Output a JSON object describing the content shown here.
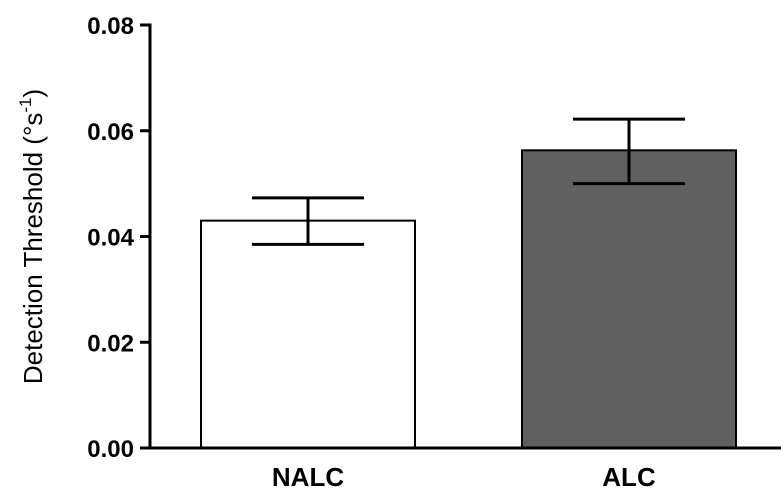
{
  "chart_data": {
    "type": "bar",
    "categories": [
      "NALC",
      "ALC"
    ],
    "values": [
      0.043,
      0.0563
    ],
    "error": [
      {
        "low": 0.0385,
        "high": 0.0473
      },
      {
        "low": 0.05,
        "high": 0.0622
      }
    ],
    "bar_colors": [
      "#ffffff",
      "#606060"
    ],
    "bar_edge_color": "#000000",
    "ylabel": {
      "main": "Detection Threshold (°s",
      "superscript": "-1",
      "close": ")"
    },
    "ylim": [
      0,
      0.08
    ],
    "yticks": [
      0,
      0.02,
      0.04,
      0.06,
      0.08
    ],
    "ytick_labels": [
      "0.00",
      "0.02",
      "0.04",
      "0.06",
      "0.08"
    ],
    "grid": false
  }
}
